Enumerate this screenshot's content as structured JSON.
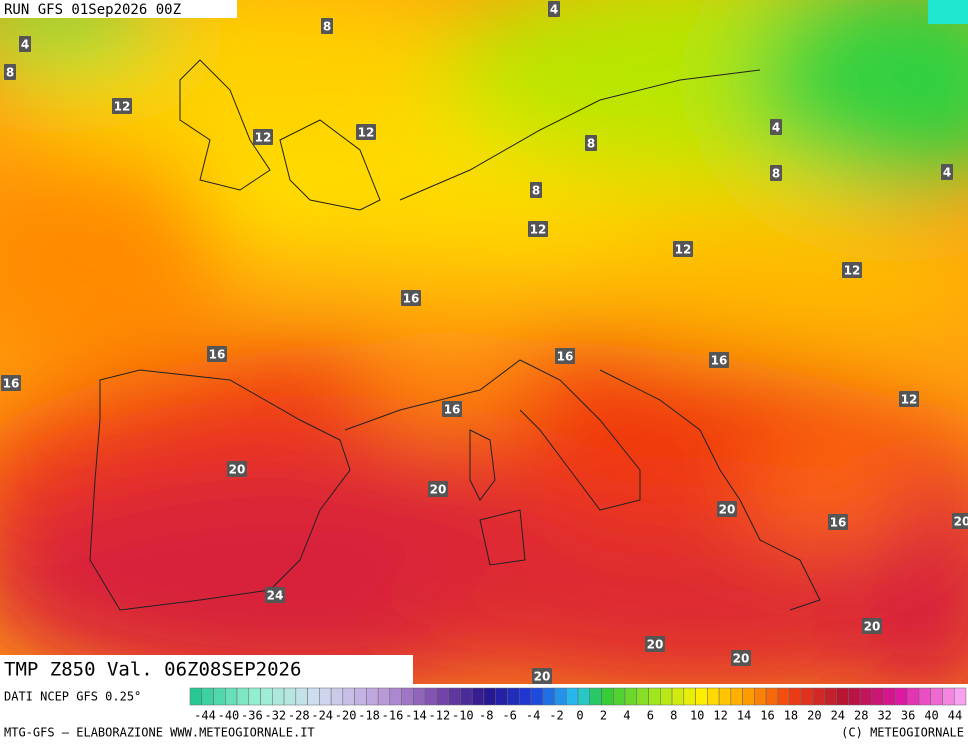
{
  "header": {
    "run": "RUN GFS 01Sep2026 00Z"
  },
  "map": {
    "contour_labels": [
      4,
      8,
      8,
      4,
      12,
      12,
      12,
      8,
      8,
      4,
      8,
      4,
      12,
      12,
      12,
      16,
      16,
      16,
      16,
      16,
      12,
      16,
      20,
      20,
      20,
      16,
      20,
      24,
      20,
      20,
      20,
      20
    ]
  },
  "footer": {
    "title": "TMP Z850 Val. 06Z08SEP2026",
    "source": "DATI NCEP GFS 0.25°",
    "credit": "MTG-GFS — ELABORAZIONE WWW.METEOGIORNALE.IT",
    "copyright": "(C) METEOGIORNALE",
    "scale_labels": [
      -44,
      -40,
      -36,
      -32,
      -28,
      -24,
      -20,
      -18,
      -16,
      -14,
      -12,
      -10,
      -8,
      -6,
      -4,
      -2,
      0,
      2,
      4,
      6,
      8,
      10,
      12,
      14,
      16,
      18,
      20,
      24,
      28,
      32,
      36,
      40,
      44
    ]
  }
}
